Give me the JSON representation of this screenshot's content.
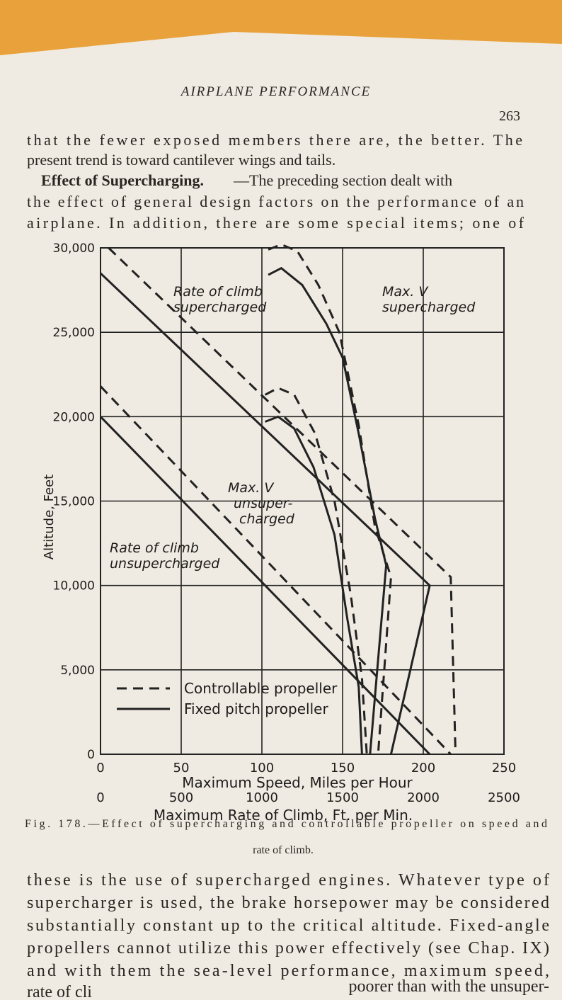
{
  "header": {
    "running_title": "AIRPLANE PERFORMANCE",
    "page_number": "263"
  },
  "paragraph_1": [
    "that the fewer exposed members there are, the better.  The",
    "present trend is toward cantilever wings and tails."
  ],
  "section": {
    "heading": "Effect of Supercharging.",
    "lines": [
      "—The preceding section dealt with",
      "the effect of general design factors on the performance of an",
      "airplane.  In addition, there are some special items; one of"
    ]
  },
  "figure": {
    "chart": {
      "type": "line",
      "y_label": "Altitude, Feet",
      "x_label": "Maximum Speed, Miles per Hour",
      "x2_label": "Maximum Rate of Climb, Ft. per Min.",
      "xlim": [
        0,
        250
      ],
      "xticks": [
        0,
        50,
        100,
        150,
        200,
        250
      ],
      "x2lim": [
        0,
        2500
      ],
      "x2ticks": [
        0,
        500,
        1000,
        1500,
        2000,
        2500
      ],
      "ylim": [
        0,
        30000
      ],
      "yticks": [
        0,
        {
          "value": 5000,
          "label": "5,000"
        },
        {
          "value": 10000,
          "label": "10,000"
        },
        {
          "value": 15000,
          "label": "15,000"
        },
        {
          "value": 20000,
          "label": "20,000"
        },
        {
          "value": 25000,
          "label": "25,000"
        },
        {
          "value": 30000,
          "label": "30,000"
        }
      ],
      "grid": true,
      "legend": [
        {
          "label": "Controllable propeller",
          "style": "dashed"
        },
        {
          "label": "Fixed pitch propeller",
          "style": "solid"
        }
      ],
      "annotations": [
        [
          "Rate of climb",
          "supercharged"
        ],
        [
          "Max. V",
          "supercharged"
        ],
        [
          "Max. V",
          "unsuper-",
          "charged"
        ],
        [
          "Rate of climb",
          "unsupercharged"
        ]
      ],
      "series": [
        {
          "axis": "x2",
          "style": "dashed",
          "color": "#222222",
          "x": [
            50,
            2170,
            2200
          ],
          "y": [
            30000,
            10500,
            0
          ]
        },
        {
          "axis": "x2",
          "style": "solid",
          "color": "#222222",
          "x": [
            0,
            2040,
            1800
          ],
          "y": [
            28500,
            10000,
            0
          ]
        },
        {
          "axis": "x2",
          "style": "dashed",
          "color": "#222222",
          "x": [
            0,
            2170
          ],
          "y": [
            21800,
            0
          ]
        },
        {
          "axis": "x2",
          "style": "solid",
          "color": "#222222",
          "x": [
            0,
            2040
          ],
          "y": [
            20000,
            0
          ]
        },
        {
          "axis": "x",
          "style": "dashed",
          "color": "#222222",
          "x": [
            104,
            112,
            122,
            135,
            148,
            160,
            170,
            180,
            172
          ],
          "y": [
            29900,
            30200,
            29800,
            27800,
            25000,
            19500,
            13500,
            10500,
            0
          ]
        },
        {
          "axis": "x",
          "style": "solid",
          "color": "#222222",
          "x": [
            104,
            112,
            125,
            140,
            150,
            160,
            170,
            177,
            167
          ],
          "y": [
            28400,
            28800,
            27800,
            25500,
            23500,
            19000,
            14000,
            11200,
            0
          ]
        },
        {
          "axis": "x",
          "style": "dashed",
          "color": "#222222",
          "x": [
            102,
            110,
            120,
            133,
            145,
            155,
            162,
            165
          ],
          "y": [
            21300,
            21700,
            21300,
            19000,
            15000,
            9500,
            4500,
            0
          ]
        },
        {
          "axis": "x",
          "style": "solid",
          "color": "#222222",
          "x": [
            102,
            110,
            120,
            132,
            145,
            153,
            160,
            162
          ],
          "y": [
            19700,
            20000,
            19300,
            17000,
            13000,
            8000,
            4000,
            0
          ]
        }
      ]
    },
    "caption": [
      "Fig. 178.—Effect of supercharging and controllable propeller on speed and",
      "rate of climb."
    ]
  },
  "paragraph_2": [
    "these is the use of supercharged engines.  Whatever type of",
    "supercharger is used, the brake horsepower may be considered",
    "substantially constant up to the critical altitude.  Fixed-angle",
    "propellers cannot utilize this power effectively (see Chap. IX)",
    "and with them the sea-level performance, maximum speed,",
    "rate of cli",
    "poorer than with the unsuper-"
  ]
}
